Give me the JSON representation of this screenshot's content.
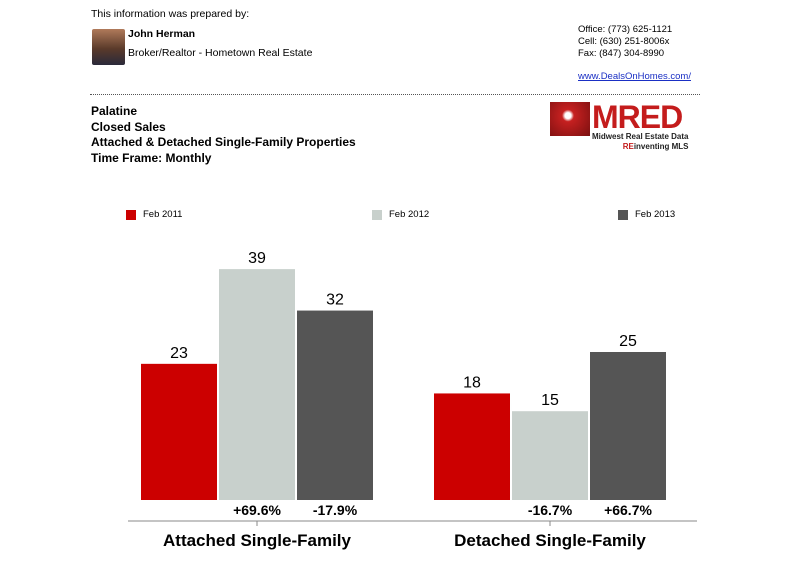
{
  "header": {
    "prepared_by": "This information was prepared by:",
    "agent_name": "John Herman",
    "agent_role": "Broker/Realtor - Hometown Real Estate",
    "office": "Office: (773) 625-1121",
    "cell": "Cell: (630) 251-8006x",
    "fax": "Fax: (847) 304-8990",
    "website": "www.DealsOnHomes.com/"
  },
  "report": {
    "area": "Palatine",
    "metric": "Closed Sales",
    "property_types": "Attached & Detached Single-Family Properties",
    "time_frame": "Time Frame: Monthly"
  },
  "logo": {
    "text": "MRED",
    "subtitle": "Midwest Real Estate Data",
    "tagline_accent": "RE",
    "tagline_rest": "inventing MLS"
  },
  "chart_data": {
    "type": "bar",
    "categories": [
      "Attached Single-Family",
      "Detached Single-Family"
    ],
    "series": [
      {
        "name": "Feb 2011",
        "color": "#cc0000",
        "values": [
          23,
          18
        ]
      },
      {
        "name": "Feb 2012",
        "color": "#c8d0cc",
        "values": [
          39,
          15
        ]
      },
      {
        "name": "Feb 2013",
        "color": "#555555",
        "values": [
          32,
          25
        ]
      }
    ],
    "percent_changes": [
      [
        "+69.6%",
        "-17.9%"
      ],
      [
        "-16.7%",
        "+66.7%"
      ]
    ],
    "legend_position": "top",
    "grid": false
  }
}
